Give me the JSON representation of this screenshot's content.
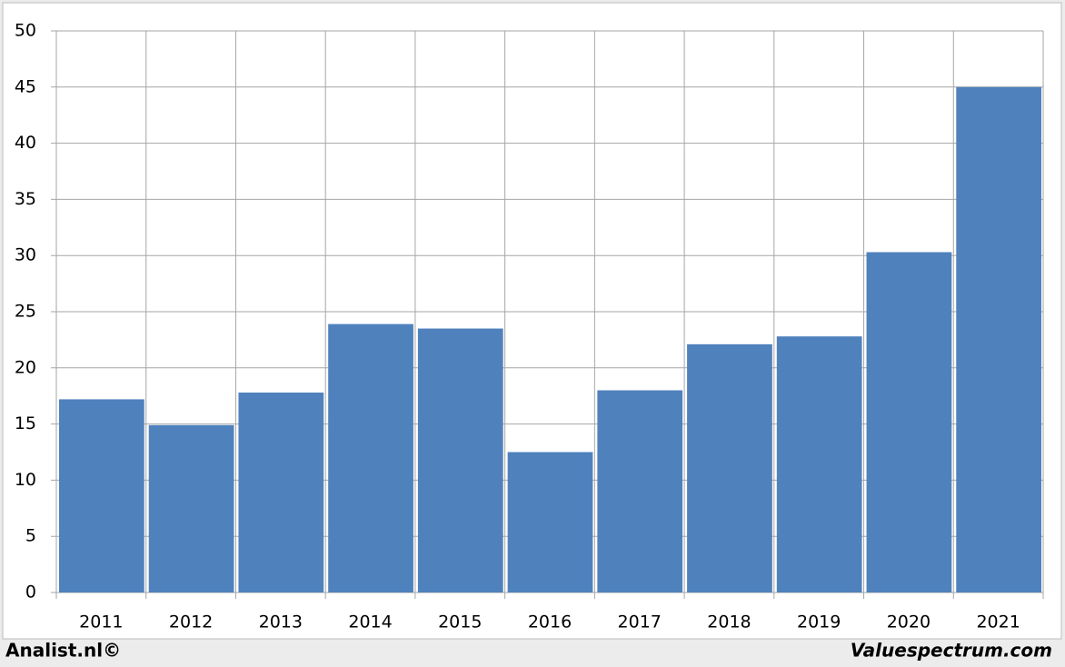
{
  "chart_data": {
    "type": "bar",
    "categories": [
      "2011",
      "2012",
      "2013",
      "2014",
      "2015",
      "2016",
      "2017",
      "2018",
      "2019",
      "2020",
      "2021"
    ],
    "values": [
      17.2,
      14.9,
      17.8,
      23.9,
      23.5,
      12.5,
      18.0,
      22.1,
      22.8,
      30.3,
      45.0
    ],
    "color": "#4f81bd",
    "ylim": [
      0,
      50
    ],
    "yticks": [
      0,
      5,
      10,
      15,
      20,
      25,
      30,
      35,
      40,
      45,
      50
    ],
    "grid": true,
    "footer_left": "Analist.nl©",
    "footer_right": "Valuespectrum.com"
  }
}
